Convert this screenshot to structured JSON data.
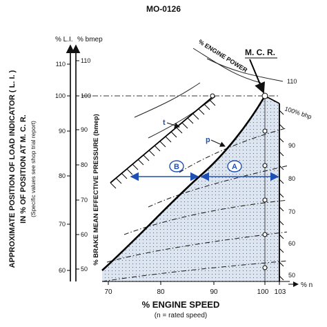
{
  "title": "MO-0126",
  "left_axis": {
    "unit": "% L.I.",
    "ticks": [
      "110",
      "100",
      "90",
      "80",
      "70",
      "60"
    ],
    "label_line1": "APPROXIMATE POSITION OF LOAD INDICATOR ( L. I. )",
    "label_line2": "IN % OF POSITION AT M. C. R.",
    "label_line3": "(Specific values see shop trial report)"
  },
  "bmep_axis": {
    "unit": "% bmep",
    "ticks": [
      "110",
      "100",
      "90",
      "80",
      "70",
      "60",
      "50"
    ],
    "label": "% BRAKE MEAN EFFECTIVE PRESSURE (bmep)"
  },
  "x_axis": {
    "ticks": [
      "70",
      "80",
      "90",
      "100",
      "103"
    ],
    "unit": "% n",
    "label": "% ENGINE SPEED",
    "sublabel": "(n = rated speed)"
  },
  "labels": {
    "engine_power": "% ENGINE POWER",
    "mcr": "M. C. R.",
    "bhp100": "100% bhp",
    "t": "t",
    "p": "p",
    "zone_a": "A",
    "zone_b": "B"
  },
  "power_curves": [
    "110",
    "90",
    "80",
    "70",
    "60",
    "50"
  ],
  "colors": {
    "zone_fill": "#dde6f0",
    "arrow_blue": "#1f4fb4",
    "ink": "#111111"
  }
}
